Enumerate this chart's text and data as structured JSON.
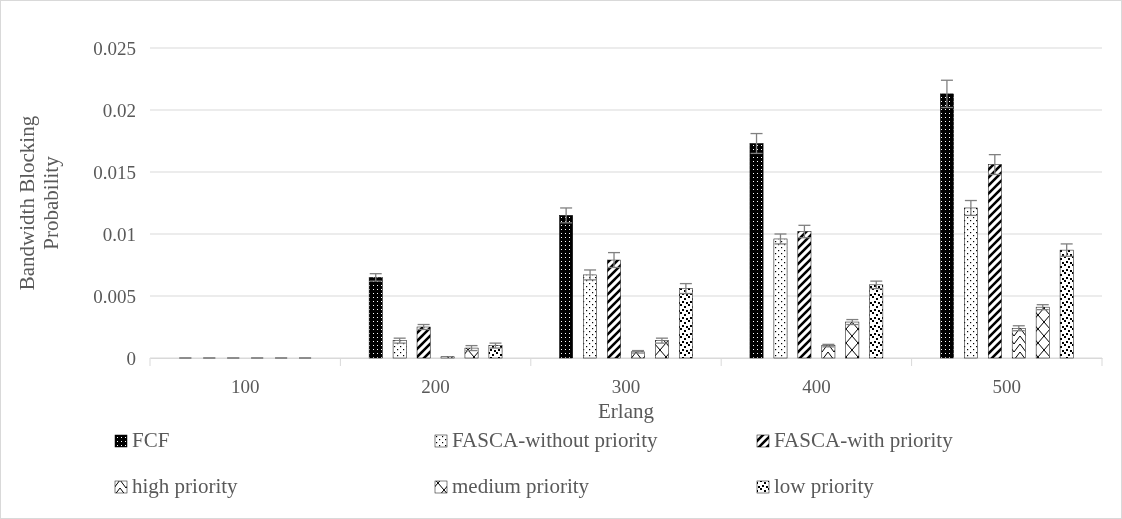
{
  "chart_data": {
    "type": "bar",
    "xlabel": "Erlang",
    "ylabel": "Bandwidth Blocking Probability",
    "categories": [
      "100",
      "200",
      "300",
      "400",
      "500"
    ],
    "ylim": [
      0,
      0.025
    ],
    "yticks": [
      0,
      0.005,
      {
        "value": 0.01,
        "label": "0.01"
      },
      0.015,
      {
        "value": 0.02,
        "label": "0.02"
      },
      0.025
    ],
    "grid": "y",
    "legend": "bottom",
    "series": [
      {
        "name": "FCF",
        "color": "#000000",
        "values": [
          0,
          0.0065,
          0.0115,
          0.0173,
          0.0213
        ],
        "errors": [
          0,
          0.0003,
          0.0006,
          0.0008,
          0.0011
        ]
      },
      {
        "name": "FASCA-without priority",
        "color": "#000000",
        "values": [
          0,
          0.0014,
          0.0067,
          0.0096,
          0.0121
        ],
        "errors": [
          0,
          0.0002,
          0.0004,
          0.0004,
          0.0006
        ]
      },
      {
        "name": "FASCA-with priority",
        "color": "#000000",
        "values": [
          0,
          0.0025,
          0.0079,
          0.0102,
          0.0156
        ],
        "errors": [
          0,
          0.0002,
          0.0006,
          0.0005,
          0.0008
        ]
      },
      {
        "name": "high priority",
        "color": "#000000",
        "values": [
          0,
          0.0001,
          0.0005,
          0.001,
          0.0024
        ],
        "errors": [
          0,
          null,
          0.0001,
          0.0001,
          0.0002
        ]
      },
      {
        "name": "medium priority",
        "color": "#000000",
        "values": [
          0,
          0.0008,
          0.0014,
          0.0029,
          0.0041
        ],
        "errors": [
          0,
          0.0002,
          0.0002,
          0.0002,
          0.0002
        ]
      },
      {
        "name": "low priority",
        "color": "#000000",
        "values": [
          0,
          0.001,
          0.0056,
          0.0059,
          0.0087
        ],
        "errors": [
          0,
          0.0002,
          0.0004,
          0.0003,
          0.0005
        ]
      }
    ]
  }
}
